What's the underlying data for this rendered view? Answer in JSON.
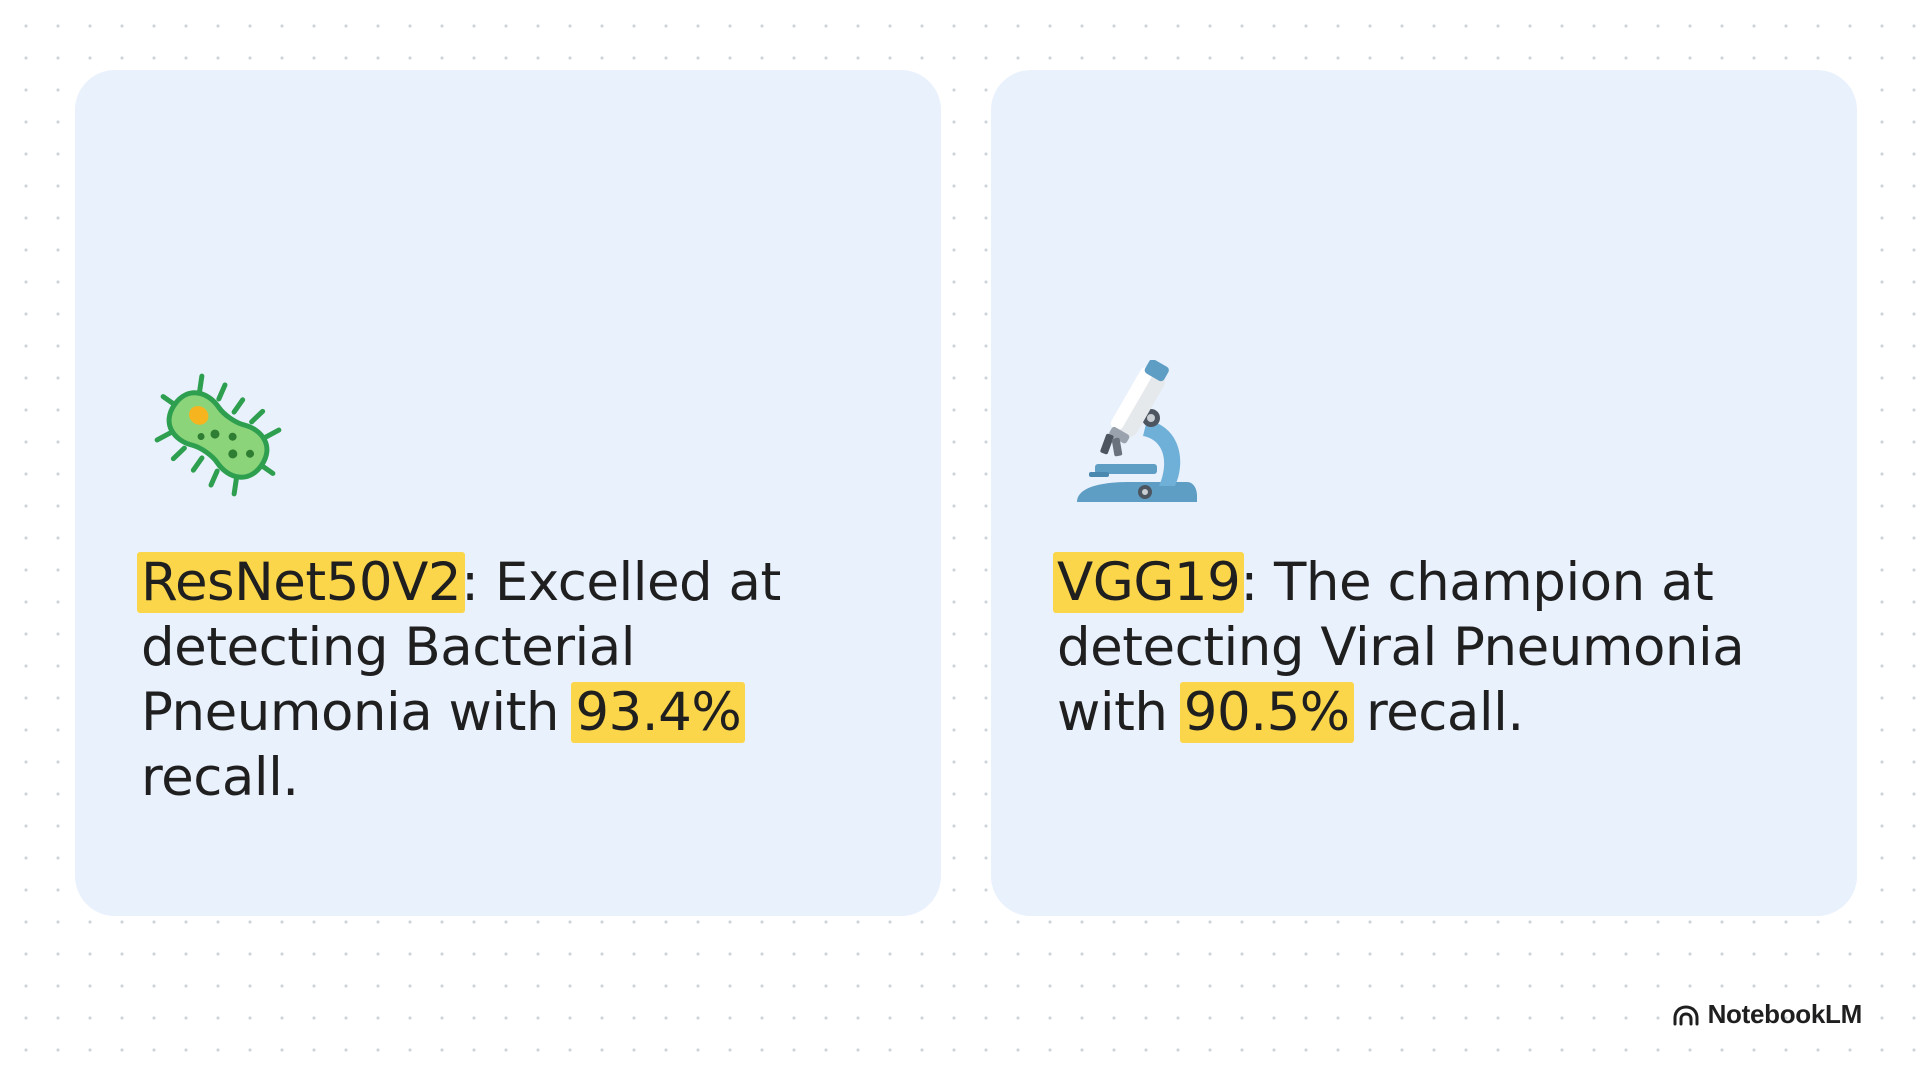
{
  "cards": [
    {
      "icon": "microbe-icon",
      "model": "ResNet50V2",
      "text_1": ": Excelled at detecting Bacterial Pneumonia with ",
      "metric": "93.4%",
      "text_2": " recall."
    },
    {
      "icon": "microscope-icon",
      "model": "VGG19",
      "text_1": ": The champion at detecting Viral Pneumonia with ",
      "metric": "90.5%",
      "text_2": " recall."
    }
  ],
  "brand": {
    "name": "NotebookLM",
    "icon": "notebooklm-logo-icon"
  },
  "colors": {
    "card_background": "#e9f1fd",
    "highlight": "#fcd64a",
    "text": "#1f1f1f"
  }
}
